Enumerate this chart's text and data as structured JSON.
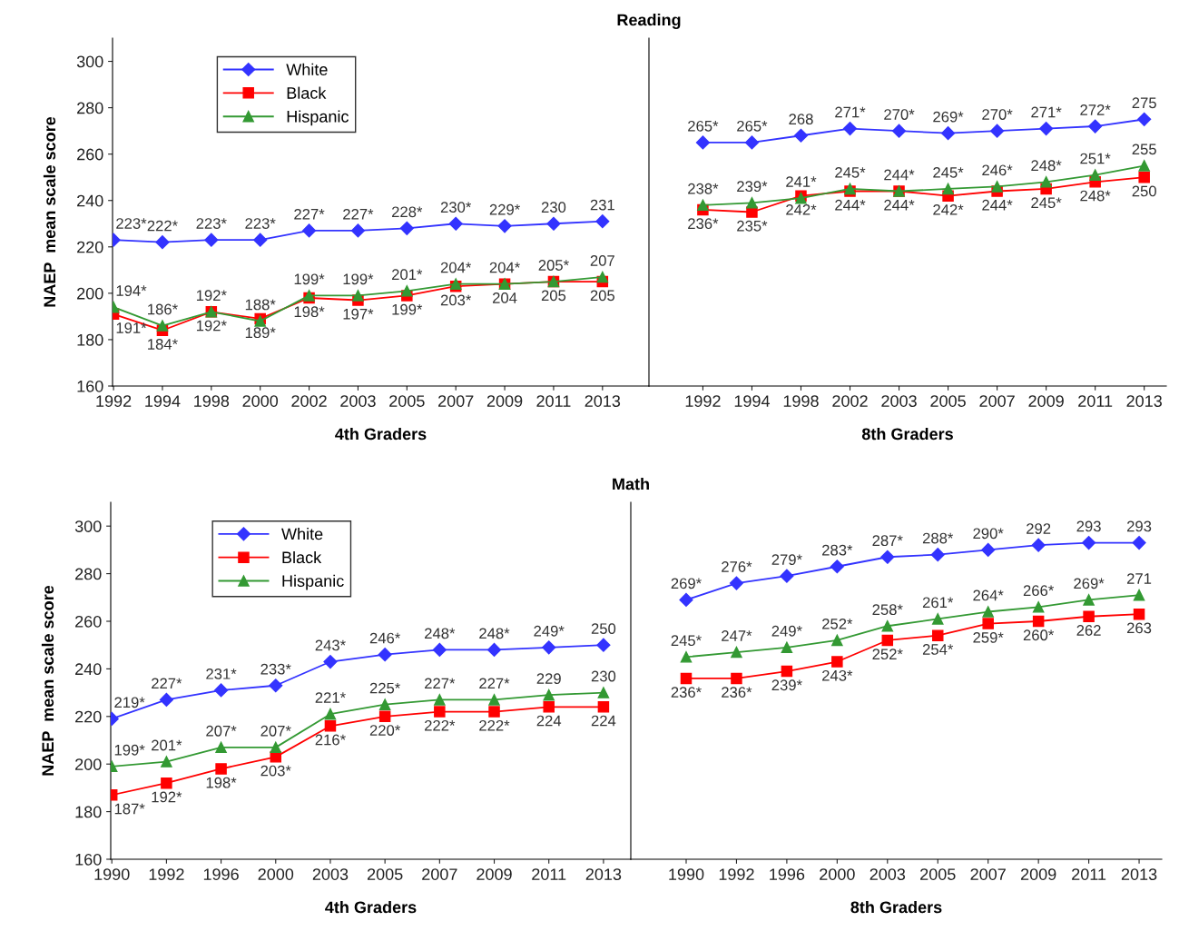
{
  "chart_data": [
    {
      "type": "line",
      "title": "Reading",
      "xlabel": "4th Graders",
      "ylabel": "NAEP  mean scale score",
      "categories": [
        "1992",
        "1994",
        "1998",
        "2000",
        "2002",
        "2003",
        "2005",
        "2007",
        "2009",
        "2011",
        "2013"
      ],
      "ylim": [
        160,
        310
      ],
      "yticks": [
        160,
        180,
        200,
        220,
        240,
        260,
        280,
        300
      ],
      "legend": "top left",
      "grid": false,
      "series": [
        {
          "name": "White",
          "color": "#3333ff",
          "marker": "diamond",
          "values": [
            223,
            222,
            223,
            223,
            227,
            227,
            228,
            230,
            229,
            230,
            231
          ],
          "value_labels": [
            "223*",
            "222*",
            "223*",
            "223*",
            "227*",
            "227*",
            "228*",
            "230*",
            "229*",
            "230",
            "231"
          ]
        },
        {
          "name": "Black",
          "color": "#ff0000",
          "marker": "square",
          "values": [
            191,
            184,
            192,
            189,
            198,
            197,
            199,
            203,
            204,
            205,
            205
          ],
          "value_labels": [
            "191*",
            "184*",
            "192*",
            "189*",
            "198*",
            "197*",
            "199*",
            "203*",
            "204",
            "205",
            "205"
          ]
        },
        {
          "name": "Hispanic",
          "color": "#339933",
          "marker": "triangle",
          "values": [
            194,
            186,
            192,
            188,
            199,
            199,
            201,
            204,
            204,
            205,
            207
          ],
          "value_labels": [
            "194*",
            "186*",
            "192*",
            "188*",
            "199*",
            "199*",
            "201*",
            "204*",
            "204*",
            "205*",
            "207"
          ]
        }
      ]
    },
    {
      "type": "line",
      "xlabel": "8th Graders",
      "categories": [
        "1992",
        "1994",
        "1998",
        "2002",
        "2003",
        "2005",
        "2007",
        "2009",
        "2011",
        "2013"
      ],
      "ylim": [
        160,
        310
      ],
      "tick_labels": "x",
      "grid": false,
      "series": [
        {
          "color": "#3333ff",
          "marker": "diamond",
          "values": [
            265,
            265,
            268,
            271,
            270,
            269,
            270,
            271,
            272,
            275
          ],
          "value_labels": [
            "265*",
            "265*",
            "268",
            "271*",
            "270*",
            "269*",
            "270*",
            "271*",
            "272*",
            "275"
          ]
        },
        {
          "color": "#ff0000",
          "marker": "square",
          "values": [
            236,
            235,
            242,
            244,
            244,
            242,
            244,
            245,
            248,
            250
          ],
          "value_labels": [
            "236*",
            "235*",
            "242*",
            "244*",
            "244*",
            "242*",
            "244*",
            "245*",
            "248*",
            "250"
          ]
        },
        {
          "color": "#339933",
          "marker": "triangle",
          "values": [
            238,
            239,
            241,
            245,
            244,
            245,
            246,
            248,
            251,
            255
          ],
          "value_labels": [
            "238*",
            "239*",
            "241*",
            "245*",
            "244*",
            "245*",
            "246*",
            "248*",
            "251*",
            "255"
          ]
        }
      ]
    },
    {
      "type": "line",
      "title": "Math",
      "xlabel": "4th Graders",
      "ylabel": "NAEP  mean scale score",
      "categories": [
        "1990",
        "1992",
        "1996",
        "2000",
        "2003",
        "2005",
        "2007",
        "2009",
        "2011",
        "2013"
      ],
      "ylim": [
        160,
        310
      ],
      "yticks": [
        160,
        180,
        200,
        220,
        240,
        260,
        280,
        300
      ],
      "legend": "top left",
      "grid": false,
      "series": [
        {
          "name": "White",
          "color": "#3333ff",
          "marker": "diamond",
          "values": [
            219,
            227,
            231,
            233,
            243,
            246,
            248,
            248,
            249,
            250
          ],
          "value_labels": [
            "219*",
            "227*",
            "231*",
            "233*",
            "243*",
            "246*",
            "248*",
            "248*",
            "249*",
            "250"
          ]
        },
        {
          "name": "Black",
          "color": "#ff0000",
          "marker": "square",
          "values": [
            187,
            192,
            198,
            203,
            216,
            220,
            222,
            222,
            224,
            224
          ],
          "value_labels": [
            "187*",
            "192*",
            "198*",
            "203*",
            "216*",
            "220*",
            "222*",
            "222*",
            "224",
            "224"
          ]
        },
        {
          "name": "Hispanic",
          "color": "#339933",
          "marker": "triangle",
          "values": [
            199,
            201,
            207,
            207,
            221,
            225,
            227,
            227,
            229,
            230
          ],
          "value_labels": [
            "199*",
            "201*",
            "207*",
            "207*",
            "221*",
            "225*",
            "227*",
            "227*",
            "229",
            "230"
          ]
        }
      ]
    },
    {
      "type": "line",
      "xlabel": "8th Graders",
      "categories": [
        "1990",
        "1992",
        "1996",
        "2000",
        "2003",
        "2005",
        "2007",
        "2009",
        "2011",
        "2013"
      ],
      "ylim": [
        160,
        310
      ],
      "tick_labels": "x",
      "grid": false,
      "series": [
        {
          "color": "#3333ff",
          "marker": "diamond",
          "values": [
            269,
            276,
            279,
            283,
            287,
            288,
            290,
            292,
            293,
            293
          ],
          "value_labels": [
            "269*",
            "276*",
            "279*",
            "283*",
            "287*",
            "288*",
            "290*",
            "292",
            "293",
            "293"
          ]
        },
        {
          "color": "#ff0000",
          "marker": "square",
          "values": [
            236,
            236,
            239,
            243,
            252,
            254,
            259,
            260,
            262,
            263
          ],
          "value_labels": [
            "236*",
            "236*",
            "239*",
            "243*",
            "252*",
            "254*",
            "259*",
            "260*",
            "262",
            "263"
          ]
        },
        {
          "color": "#339933",
          "marker": "triangle",
          "values": [
            245,
            247,
            249,
            252,
            258,
            261,
            264,
            266,
            269,
            271
          ],
          "value_labels": [
            "245*",
            "247*",
            "249*",
            "252*",
            "258*",
            "261*",
            "264*",
            "266*",
            "269*",
            "271"
          ]
        }
      ]
    }
  ]
}
